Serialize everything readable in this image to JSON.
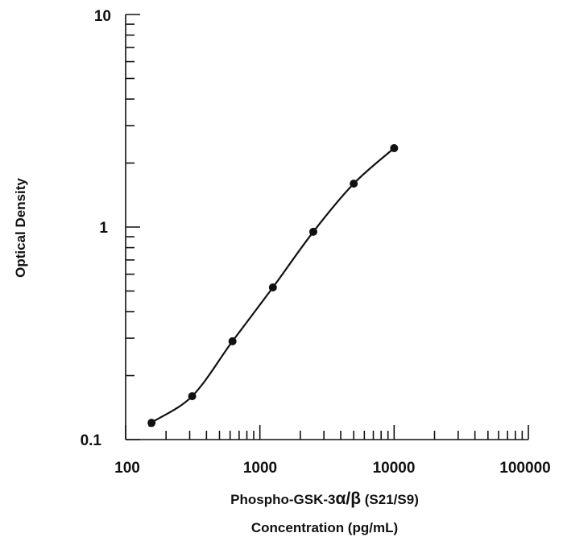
{
  "chart_data": {
    "type": "scatter",
    "title": "",
    "xlabel_line1_prefix": "Phospho-GSK-3",
    "xlabel_line1_greek": "α/β",
    "xlabel_line1_suffix": " (S21/S9)",
    "xlabel_line2": "Concentration (pg/mL)",
    "ylabel": "Optical Density",
    "x_scale": "log",
    "y_scale": "log",
    "xlim": [
      100,
      100000
    ],
    "ylim": [
      0.1,
      10
    ],
    "x_tick_labels": [
      "100",
      "1000",
      "10000",
      "100000"
    ],
    "y_tick_labels": [
      "0.1",
      "1",
      "10"
    ],
    "grid": false,
    "series": [
      {
        "x": [
          156,
          313,
          625,
          1250,
          2500,
          5000,
          10000
        ],
        "y": [
          0.12,
          0.16,
          0.29,
          0.52,
          0.95,
          1.6,
          2.35
        ]
      }
    ],
    "fit_curve": true
  }
}
